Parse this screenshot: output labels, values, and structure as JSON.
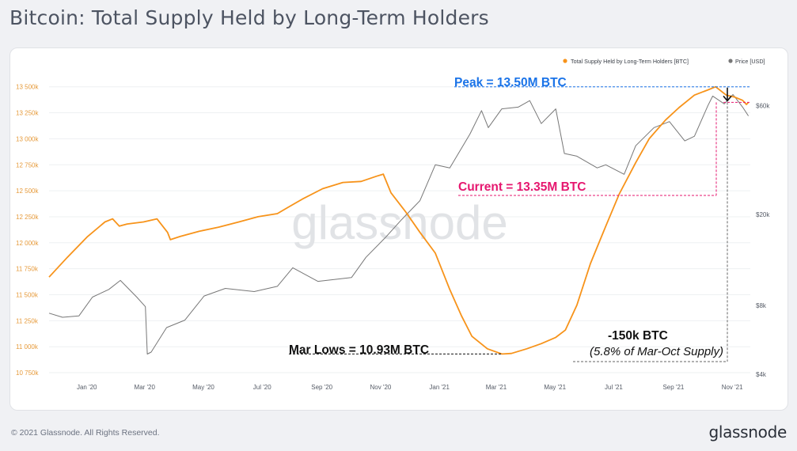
{
  "page": {
    "title": "Bitcoin: Total Supply Held by Long-Term Holders",
    "footer": "© 2021 Glassnode. All Rights Reserved.",
    "logo": "glassnode",
    "watermark": "glassnode"
  },
  "colors": {
    "lth_series": "#f7931a",
    "price_series": "#777777",
    "peak_annotation": "#1a73e8",
    "current_annotation": "#e6176f",
    "text": "#111111"
  },
  "chart_data": {
    "type": "line",
    "title": "",
    "xlabel": "",
    "grid": "horizontal",
    "legend_position": "top-right",
    "x_ticks": [
      "Jan '20",
      "Mar '20",
      "May '20",
      "Jul '20",
      "Sep '20",
      "Nov '20",
      "Jan '21",
      "Mar '21",
      "May '21",
      "Jul '21",
      "Sep '21",
      "Nov '21"
    ],
    "x_range": [
      "2019-12-01",
      "2021-11-28"
    ],
    "y_left": {
      "ticks": [
        "13 500k",
        "13 250k",
        "13 000k",
        "12 750k",
        "12 500k",
        "12 250k",
        "12 000k",
        "11 750k",
        "11 500k",
        "11 250k",
        "11 000k",
        "10 750k"
      ],
      "range": [
        10700000,
        13600000
      ]
    },
    "y_right": {
      "scale": "log",
      "ticks": [
        "$60k",
        "$20k",
        "$8k",
        "$4k"
      ],
      "range": [
        4000,
        70000
      ]
    },
    "series": [
      {
        "name": "Total Supply Held by Long-Term Holders [BTC]",
        "axis": "left",
        "color": "#f7931a",
        "points": [
          [
            "2019-12-01",
            11670000
          ],
          [
            "2019-12-20",
            11860000
          ],
          [
            "2020-01-10",
            12060000
          ],
          [
            "2020-01-28",
            12200000
          ],
          [
            "2020-02-05",
            12230000
          ],
          [
            "2020-02-12",
            12160000
          ],
          [
            "2020-02-20",
            12180000
          ],
          [
            "2020-03-08",
            12200000
          ],
          [
            "2020-03-22",
            12230000
          ],
          [
            "2020-04-02",
            12100000
          ],
          [
            "2020-04-05",
            12030000
          ],
          [
            "2020-04-15",
            12060000
          ],
          [
            "2020-05-05",
            12110000
          ],
          [
            "2020-05-25",
            12150000
          ],
          [
            "2020-06-15",
            12200000
          ],
          [
            "2020-07-05",
            12250000
          ],
          [
            "2020-07-25",
            12280000
          ],
          [
            "2020-08-05",
            12340000
          ],
          [
            "2020-08-20",
            12420000
          ],
          [
            "2020-09-10",
            12520000
          ],
          [
            "2020-10-01",
            12580000
          ],
          [
            "2020-10-20",
            12590000
          ],
          [
            "2020-11-05",
            12640000
          ],
          [
            "2020-11-12",
            12660000
          ],
          [
            "2020-11-20",
            12480000
          ],
          [
            "2020-12-05",
            12300000
          ],
          [
            "2020-12-20",
            12100000
          ],
          [
            "2021-01-05",
            11900000
          ],
          [
            "2021-01-20",
            11550000
          ],
          [
            "2021-02-01",
            11300000
          ],
          [
            "2021-02-12",
            11100000
          ],
          [
            "2021-02-28",
            10980000
          ],
          [
            "2021-03-15",
            10930000
          ],
          [
            "2021-03-25",
            10935000
          ],
          [
            "2021-04-10",
            10980000
          ],
          [
            "2021-04-25",
            11030000
          ],
          [
            "2021-05-10",
            11090000
          ],
          [
            "2021-05-20",
            11160000
          ],
          [
            "2021-06-01",
            11400000
          ],
          [
            "2021-06-15",
            11800000
          ],
          [
            "2021-07-01",
            12160000
          ],
          [
            "2021-07-15",
            12470000
          ],
          [
            "2021-08-01",
            12770000
          ],
          [
            "2021-08-15",
            13000000
          ],
          [
            "2021-09-01",
            13180000
          ],
          [
            "2021-09-15",
            13300000
          ],
          [
            "2021-10-01",
            13420000
          ],
          [
            "2021-10-15",
            13470000
          ],
          [
            "2021-10-23",
            13500000
          ],
          [
            "2021-11-03",
            13420000
          ],
          [
            "2021-11-12",
            13400000
          ],
          [
            "2021-11-20",
            13370000
          ],
          [
            "2021-11-24",
            13330000
          ],
          [
            "2021-11-26",
            13350000
          ]
        ]
      },
      {
        "name": "Price [USD]",
        "axis": "right",
        "color": "#777777",
        "points": [
          [
            "2019-12-01",
            7400
          ],
          [
            "2019-12-15",
            7100
          ],
          [
            "2020-01-01",
            7200
          ],
          [
            "2020-01-15",
            8700
          ],
          [
            "2020-02-01",
            9400
          ],
          [
            "2020-02-13",
            10300
          ],
          [
            "2020-03-01",
            8700
          ],
          [
            "2020-03-10",
            7900
          ],
          [
            "2020-03-12",
            4900
          ],
          [
            "2020-03-16",
            5000
          ],
          [
            "2020-04-01",
            6400
          ],
          [
            "2020-04-20",
            6900
          ],
          [
            "2020-05-10",
            8800
          ],
          [
            "2020-06-01",
            9500
          ],
          [
            "2020-07-01",
            9200
          ],
          [
            "2020-07-25",
            9700
          ],
          [
            "2020-08-10",
            11700
          ],
          [
            "2020-09-05",
            10200
          ],
          [
            "2020-10-10",
            10600
          ],
          [
            "2020-10-25",
            13000
          ],
          [
            "2020-11-15",
            16000
          ],
          [
            "2020-12-01",
            19000
          ],
          [
            "2020-12-20",
            23000
          ],
          [
            "2021-01-05",
            33000
          ],
          [
            "2021-01-20",
            32000
          ],
          [
            "2021-02-10",
            45000
          ],
          [
            "2021-02-22",
            57000
          ],
          [
            "2021-03-01",
            48000
          ],
          [
            "2021-03-15",
            58000
          ],
          [
            "2021-04-01",
            59000
          ],
          [
            "2021-04-13",
            63000
          ],
          [
            "2021-04-25",
            50000
          ],
          [
            "2021-05-10",
            58000
          ],
          [
            "2021-05-19",
            37000
          ],
          [
            "2021-06-01",
            36000
          ],
          [
            "2021-06-22",
            32000
          ],
          [
            "2021-07-01",
            33000
          ],
          [
            "2021-07-20",
            30000
          ],
          [
            "2021-08-01",
            40000
          ],
          [
            "2021-08-20",
            48000
          ],
          [
            "2021-09-05",
            51000
          ],
          [
            "2021-09-21",
            42000
          ],
          [
            "2021-10-01",
            44000
          ],
          [
            "2021-10-15",
            60000
          ],
          [
            "2021-10-20",
            66000
          ],
          [
            "2021-11-01",
            61000
          ],
          [
            "2021-11-10",
            67000
          ],
          [
            "2021-11-20",
            59000
          ],
          [
            "2021-11-26",
            54000
          ]
        ]
      }
    ],
    "annotations": [
      {
        "text": "Peak = 13.50M BTC",
        "y": 13500000,
        "x_from": "2021-02-15",
        "x_to": "2021-11-28",
        "color": "#1a73e8"
      },
      {
        "text": "Current = 13.35M BTC",
        "y": 13350000,
        "x_from": "2021-02-01",
        "x_to": "2021-11-28",
        "color": "#e6176f"
      },
      {
        "text": "Mar Lows = 10.93M BTC",
        "y": 10930000,
        "x_from": "2020-12-05",
        "x_to": "2021-03-15",
        "color": "#111111"
      },
      {
        "text": "-150k BTC",
        "color": "#111111"
      },
      {
        "text": "(5.8% of Mar-Oct Supply)",
        "color": "#111111"
      }
    ]
  }
}
